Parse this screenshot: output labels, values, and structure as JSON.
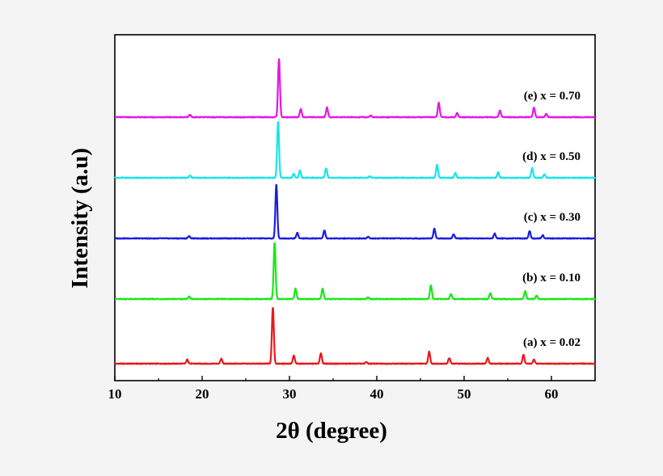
{
  "chart_data": {
    "type": "line",
    "xlabel": "2θ (degree)",
    "ylabel": "Intensity (a.u)",
    "xlim": [
      10,
      65
    ],
    "xticks": [
      "10",
      "20",
      "30",
      "40",
      "50",
      "60"
    ],
    "yticks": "none",
    "grid": false,
    "legend": "none",
    "series": [
      {
        "name": "(a) x = 0.02",
        "color": "#e8191c",
        "baseline": 0.0,
        "peaks": [
          [
            18.3,
            5
          ],
          [
            22.2,
            6
          ],
          [
            28.1,
            70
          ],
          [
            30.5,
            10
          ],
          [
            33.6,
            13
          ],
          [
            38.8,
            2
          ],
          [
            46.0,
            15
          ],
          [
            48.3,
            7
          ],
          [
            52.7,
            7
          ],
          [
            56.8,
            11
          ],
          [
            58.0,
            5
          ]
        ]
      },
      {
        "name": "(b) x = 0.10",
        "color": "#18e818",
        "baseline": 80.0,
        "peaks": [
          [
            18.5,
            3
          ],
          [
            28.3,
            70
          ],
          [
            30.7,
            13
          ],
          [
            33.8,
            13
          ],
          [
            39.0,
            2
          ],
          [
            46.2,
            17
          ],
          [
            48.5,
            6
          ],
          [
            53.0,
            7
          ],
          [
            57.0,
            10
          ],
          [
            58.3,
            4
          ]
        ]
      },
      {
        "name": "(c) x = 0.30",
        "color": "#1c1ce0",
        "baseline": 155.0,
        "peaks": [
          [
            18.5,
            3
          ],
          [
            28.5,
            67
          ],
          [
            30.9,
            7
          ],
          [
            34.0,
            10
          ],
          [
            39.0,
            2
          ],
          [
            46.6,
            12
          ],
          [
            48.8,
            5
          ],
          [
            53.5,
            6
          ],
          [
            57.5,
            9
          ],
          [
            59.0,
            4
          ]
        ]
      },
      {
        "name": "(d) x = 0.50",
        "color": "#18e4e8",
        "baseline": 230.0,
        "peaks": [
          [
            18.6,
            3
          ],
          [
            28.7,
            70
          ],
          [
            30.5,
            5
          ],
          [
            31.2,
            9
          ],
          [
            34.2,
            12
          ],
          [
            39.2,
            2
          ],
          [
            46.9,
            16
          ],
          [
            49.0,
            6
          ],
          [
            53.9,
            7
          ],
          [
            57.8,
            12
          ],
          [
            59.2,
            4
          ]
        ]
      },
      {
        "name": "(e) x = 0.70",
        "color": "#e418e4",
        "baseline": 305.0,
        "peaks": [
          [
            18.6,
            3
          ],
          [
            28.8,
            72
          ],
          [
            31.3,
            10
          ],
          [
            34.3,
            12
          ],
          [
            39.3,
            2
          ],
          [
            47.1,
            18
          ],
          [
            49.2,
            5
          ],
          [
            54.1,
            8
          ],
          [
            58.0,
            12
          ],
          [
            59.4,
            4
          ]
        ]
      }
    ]
  }
}
